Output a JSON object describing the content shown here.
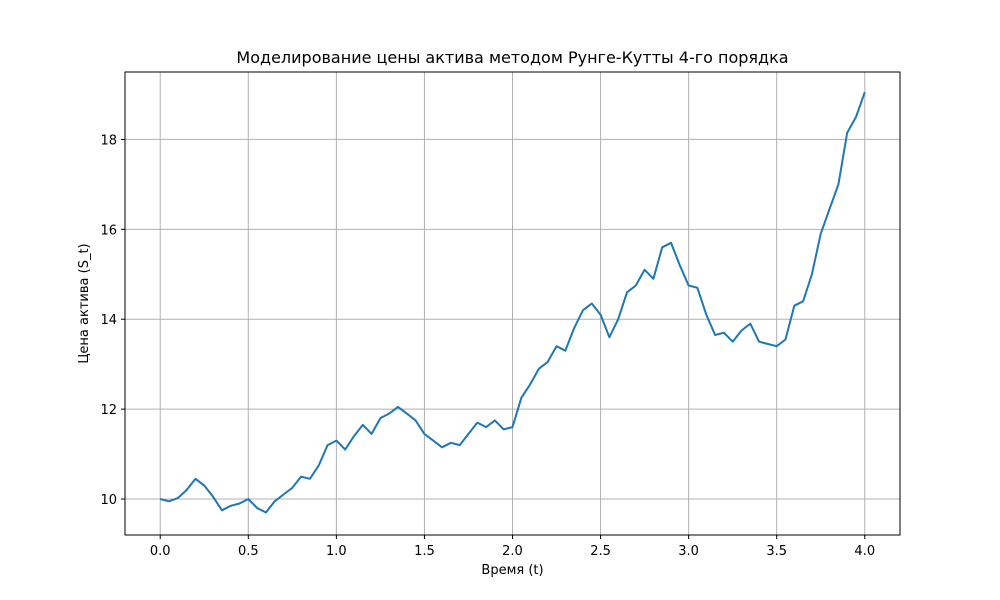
{
  "chart_data": {
    "type": "line",
    "title": "Моделирование цены актива методом Рунге-Кутты 4-го порядка",
    "xlabel": "Время (t)",
    "ylabel": "Цена актива (S_t)",
    "xlim": [
      -0.2,
      4.2
    ],
    "ylim": [
      9.2,
      19.5
    ],
    "xticks": [
      "0.0",
      "0.5",
      "1.0",
      "1.5",
      "2.0",
      "2.5",
      "3.0",
      "3.5",
      "4.0"
    ],
    "yticks": [
      "10",
      "12",
      "14",
      "16",
      "18"
    ],
    "grid": true,
    "line_color": "#1f77b4",
    "series": [
      {
        "x": [
          0.0,
          0.05,
          0.1,
          0.15,
          0.2,
          0.25,
          0.3,
          0.35,
          0.4,
          0.45,
          0.5,
          0.55,
          0.6,
          0.65,
          0.7,
          0.75,
          0.8,
          0.85,
          0.9,
          0.95,
          1.0,
          1.05,
          1.1,
          1.15,
          1.2,
          1.25,
          1.3,
          1.35,
          1.4,
          1.45,
          1.5,
          1.55,
          1.6,
          1.65,
          1.7,
          1.75,
          1.8,
          1.85,
          1.9,
          1.95,
          2.0,
          2.05,
          2.1,
          2.15,
          2.2,
          2.25,
          2.3,
          2.35,
          2.4,
          2.45,
          2.5,
          2.55,
          2.6,
          2.65,
          2.7,
          2.75,
          2.8,
          2.85,
          2.9,
          2.95,
          3.0,
          3.05,
          3.1,
          3.15,
          3.2,
          3.25,
          3.3,
          3.35,
          3.4,
          3.45,
          3.5,
          3.55,
          3.6,
          3.65,
          3.7,
          3.75,
          3.8,
          3.85,
          3.9,
          3.95,
          4.0
        ],
        "y": [
          10.0,
          9.95,
          10.02,
          10.2,
          10.45,
          10.3,
          10.05,
          9.75,
          9.85,
          9.9,
          10.0,
          9.8,
          9.7,
          9.95,
          10.1,
          10.25,
          10.5,
          10.45,
          10.75,
          11.2,
          11.3,
          11.1,
          11.4,
          11.65,
          11.45,
          11.8,
          11.9,
          12.05,
          11.9,
          11.75,
          11.45,
          11.3,
          11.15,
          11.25,
          11.2,
          11.45,
          11.7,
          11.6,
          11.75,
          11.55,
          11.6,
          12.25,
          12.55,
          12.9,
          13.05,
          13.4,
          13.3,
          13.8,
          14.2,
          14.35,
          14.1,
          13.6,
          14.0,
          14.6,
          14.75,
          15.1,
          14.9,
          15.6,
          15.7,
          15.2,
          14.75,
          14.7,
          14.1,
          13.65,
          13.7,
          13.5,
          13.75,
          13.9,
          13.5,
          13.45,
          13.4,
          13.55,
          14.3,
          14.4,
          15.0,
          15.9,
          16.45,
          17.0,
          18.15,
          18.5,
          19.05
        ]
      }
    ]
  }
}
